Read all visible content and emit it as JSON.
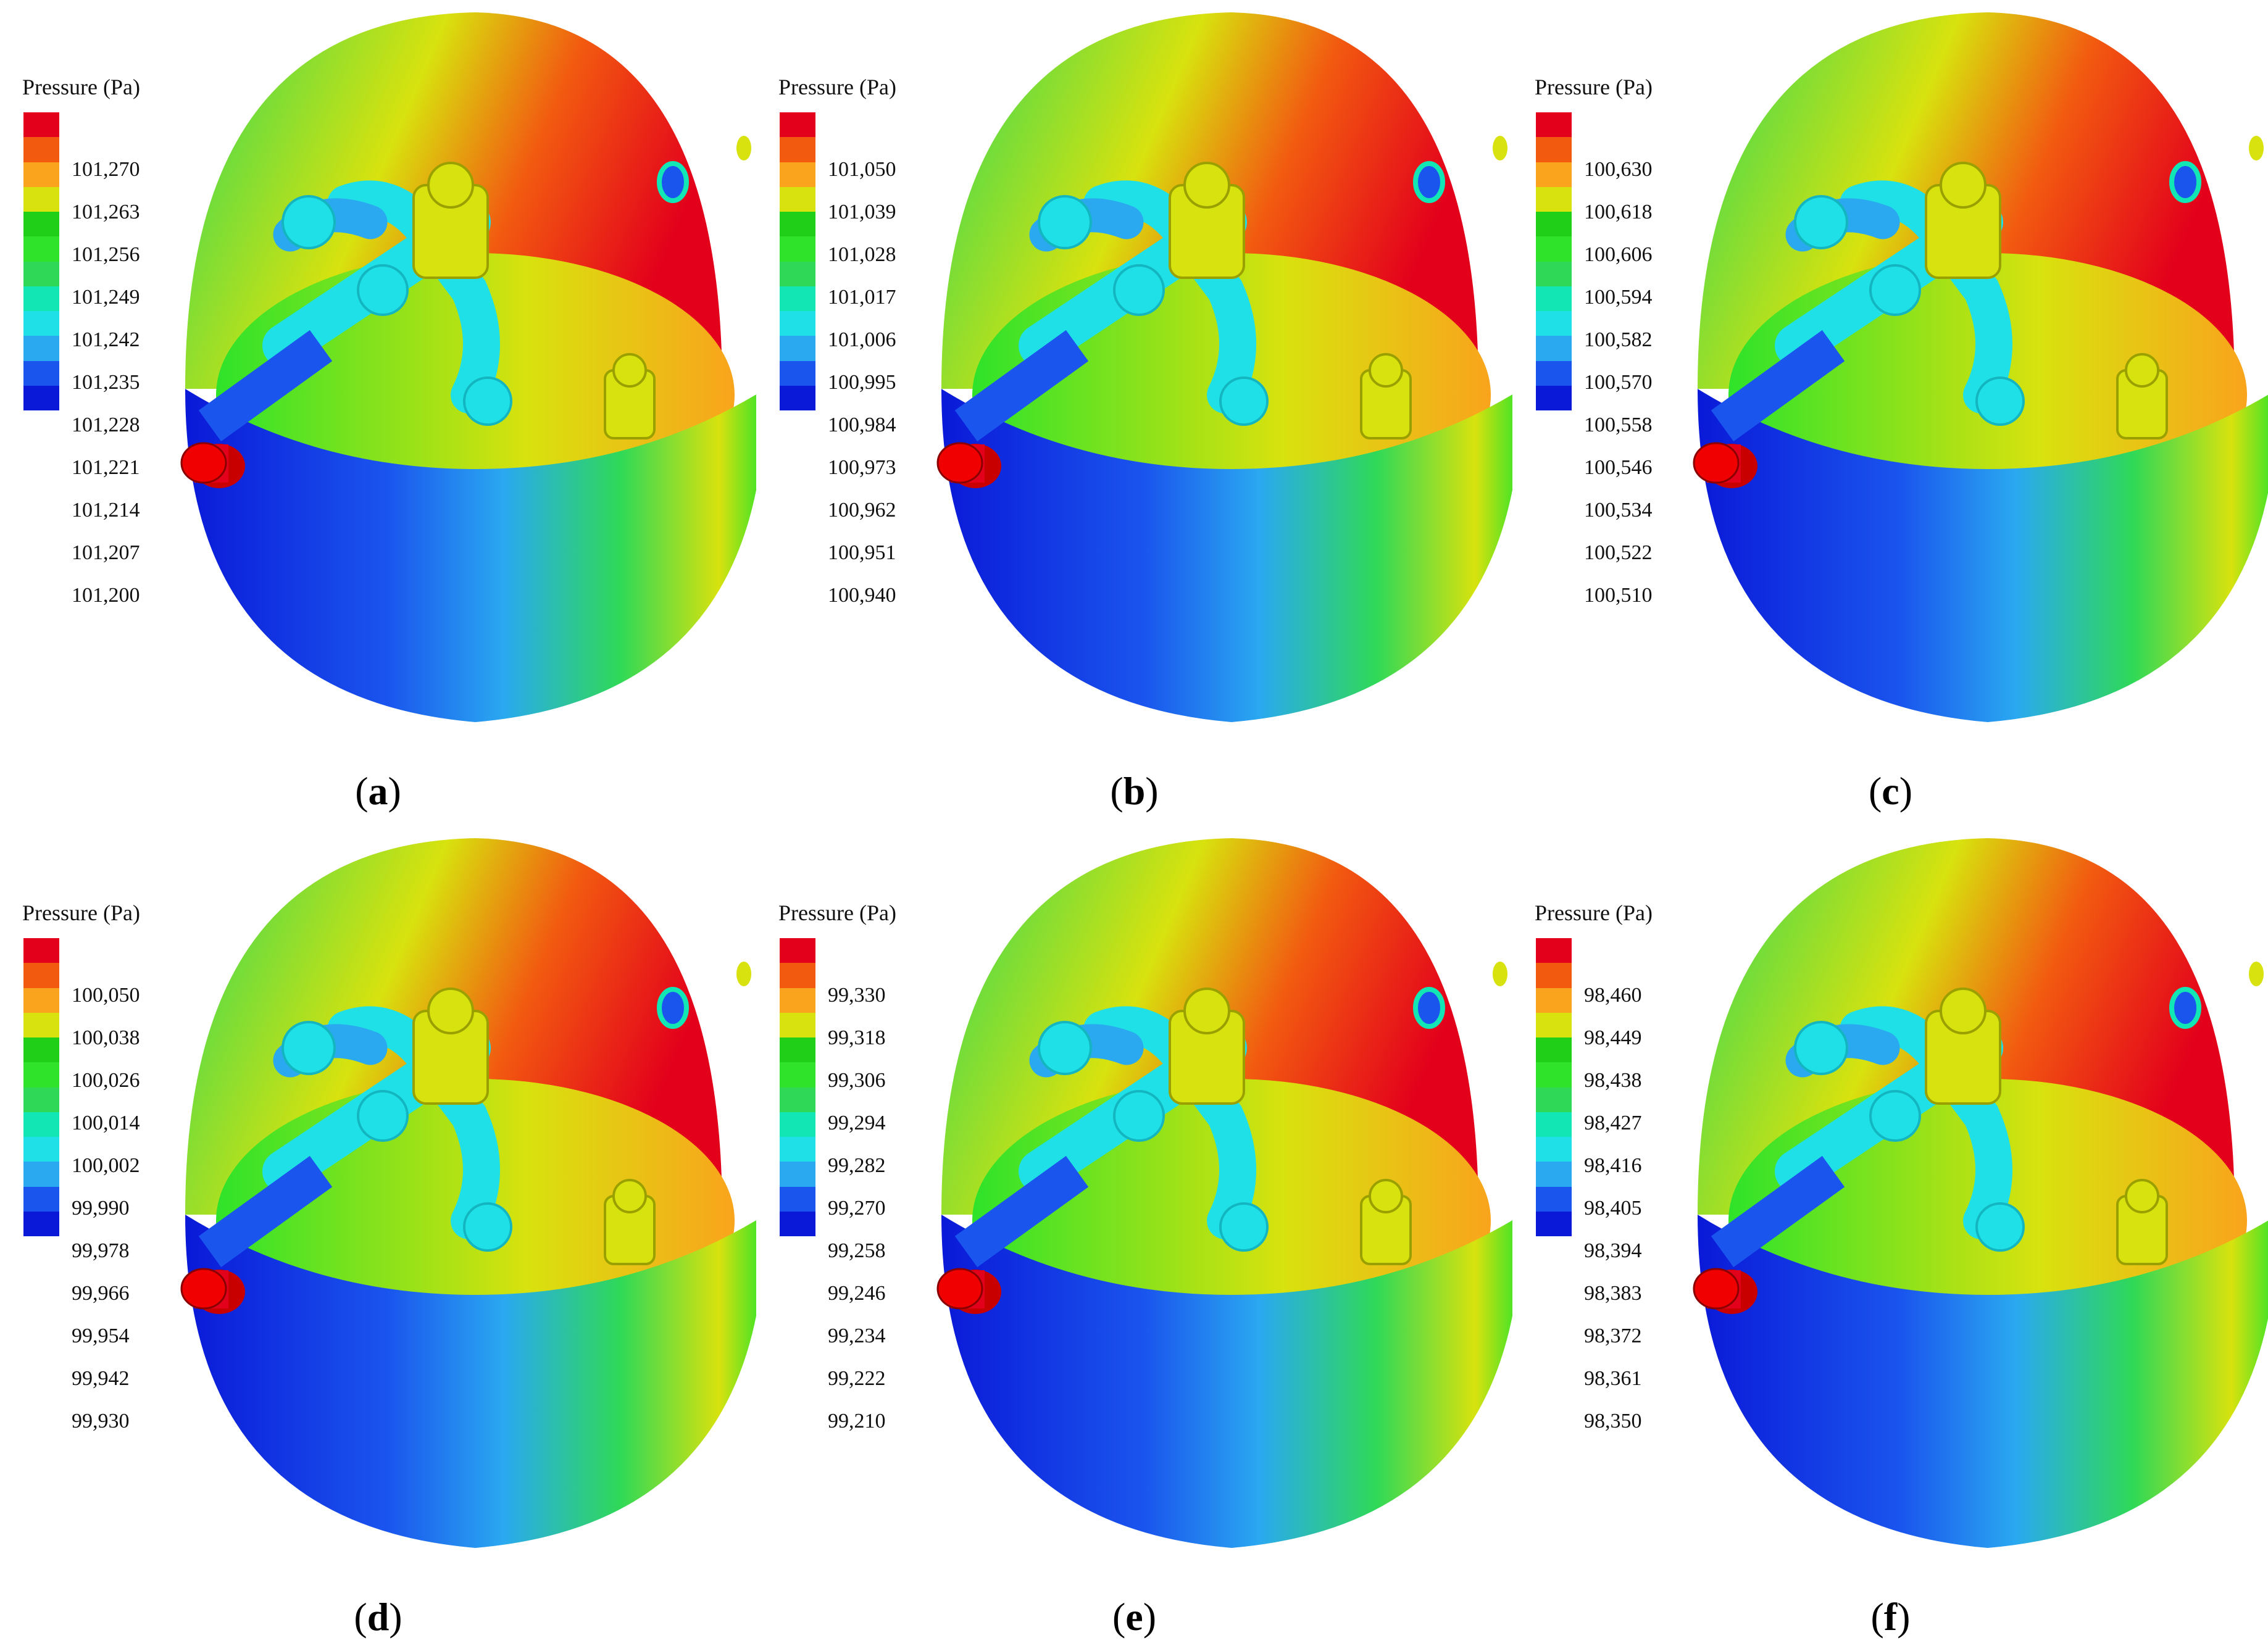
{
  "legend_title": "Pressure (Pa)",
  "colors": [
    "#e3001b",
    "#f25a10",
    "#f9a41c",
    "#d8e20e",
    "#1fcf18",
    "#2ee32a",
    "#2fd957",
    "#13e6b5",
    "#1ee0e6",
    "#2aa9f0",
    "#1a55ee",
    "#0a19d8"
  ],
  "panels": [
    {
      "caption_open": "(",
      "caption_letter": "a",
      "caption_close": ")",
      "values": [
        "101,270",
        "101,263",
        "101,256",
        "101,249",
        "101,242",
        "101,235",
        "101,228",
        "101,221",
        "101,214",
        "101,207",
        "101,200"
      ]
    },
    {
      "caption_open": "(",
      "caption_letter": "b",
      "caption_close": ")",
      "values": [
        "101,050",
        "101,039",
        "101,028",
        "101,017",
        "101,006",
        "100,995",
        "100,984",
        "100,973",
        "100,962",
        "100,951",
        "100,940"
      ]
    },
    {
      "caption_open": "(",
      "caption_letter": "c",
      "caption_close": ")",
      "values": [
        "100,630",
        "100,618",
        "100,606",
        "100,594",
        "100,582",
        "100,570",
        "100,558",
        "100,546",
        "100,534",
        "100,522",
        "100,510"
      ]
    },
    {
      "caption_open": "(",
      "caption_letter": "d",
      "caption_close": ")",
      "values": [
        "100,050",
        "100,038",
        "100,026",
        "100,014",
        "100,002",
        "99,990",
        "99,978",
        "99,966",
        "99,954",
        "99,942",
        "99,930"
      ]
    },
    {
      "caption_open": "(",
      "caption_letter": "e",
      "caption_close": ")",
      "values": [
        "99,330",
        "99,318",
        "99,306",
        "99,294",
        "99,282",
        "99,270",
        "99,258",
        "99,246",
        "99,234",
        "99,222",
        "99,210"
      ]
    },
    {
      "caption_open": "(",
      "caption_letter": "f",
      "caption_close": ")",
      "values": [
        "98,460",
        "98,449",
        "98,438",
        "98,427",
        "98,416",
        "98,405",
        "98,394",
        "98,383",
        "98,372",
        "98,361",
        "98,350"
      ]
    }
  ]
}
